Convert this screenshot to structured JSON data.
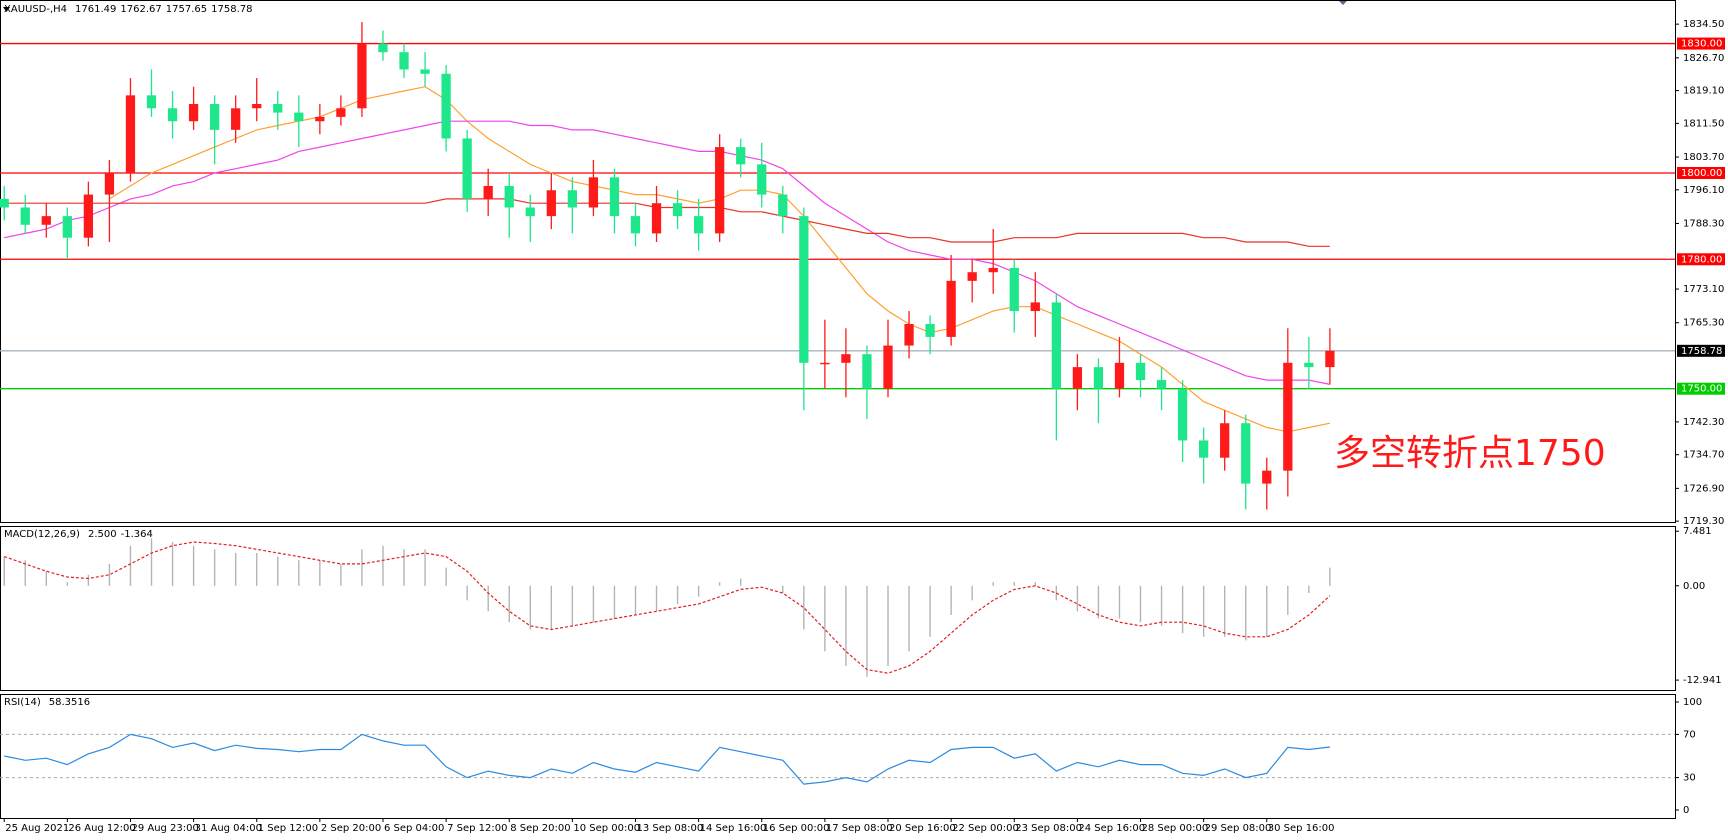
{
  "chart_data": [
    {
      "type": "candlestick",
      "title": "XAUUSD-,H4",
      "header_values": [
        1761.49,
        1762.67,
        1757.65,
        1758.78
      ],
      "annotation": "多空转折点1750",
      "annotation_color": "#ff1a1a",
      "up_color": "#ff1a1a",
      "down_color": "#1ee68a",
      "xlim": [
        -0.2,
        79.4
      ],
      "ylim": [
        1719.1,
        1840.1
      ],
      "xticks": [
        {
          "value": 0,
          "label": "25 Aug 2021"
        },
        {
          "value": 3,
          "label": "26 Aug 12:00"
        },
        {
          "value": 6,
          "label": "29 Aug 23:00"
        },
        {
          "value": 9,
          "label": "31 Aug 04:00"
        },
        {
          "value": 12,
          "label": "1 Sep 12:00"
        },
        {
          "value": 15,
          "label": "2 Sep 20:00"
        },
        {
          "value": 18,
          "label": "6 Sep 04:00"
        },
        {
          "value": 21,
          "label": "7 Sep 12:00"
        },
        {
          "value": 24,
          "label": "8 Sep 20:00"
        },
        {
          "value": 27,
          "label": "10 Sep 00:00"
        },
        {
          "value": 30,
          "label": "13 Sep 08:00"
        },
        {
          "value": 33,
          "label": "14 Sep 16:00"
        },
        {
          "value": 36,
          "label": "16 Sep 00:00"
        },
        {
          "value": 39,
          "label": "17 Sep 08:00"
        },
        {
          "value": 42,
          "label": "20 Sep 16:00"
        },
        {
          "value": 45,
          "label": "22 Sep 00:00"
        },
        {
          "value": 48,
          "label": "23 Sep 08:00"
        },
        {
          "value": 51,
          "label": "24 Sep 16:00"
        },
        {
          "value": 54,
          "label": "28 Sep 00:00"
        },
        {
          "value": 57,
          "label": "29 Sep 08:00"
        },
        {
          "value": 60,
          "label": "30 Sep 16:00"
        }
      ],
      "yticks": [
        {
          "value": 1834.5,
          "label": "1834.50"
        },
        {
          "value": 1826.7,
          "label": "1826.70"
        },
        {
          "value": 1819.1,
          "label": "1819.10"
        },
        {
          "value": 1811.5,
          "label": "1811.50"
        },
        {
          "value": 1803.7,
          "label": "1803.70"
        },
        {
          "value": 1796.1,
          "label": "1796.10"
        },
        {
          "value": 1788.3,
          "label": "1788.30"
        },
        {
          "value": 1773.1,
          "label": "1773.10"
        },
        {
          "value": 1765.3,
          "label": "1765.30"
        },
        {
          "value": 1742.3,
          "label": "1742.30"
        },
        {
          "value": 1734.7,
          "label": "1734.70"
        },
        {
          "value": 1726.9,
          "label": "1726.90"
        },
        {
          "value": 1719.3,
          "label": "1719.30"
        }
      ],
      "levels": [
        {
          "value": 1830,
          "label": "1830.00",
          "color": "#ff0000",
          "box": "#ff0000"
        },
        {
          "value": 1800,
          "label": "1800.00",
          "color": "#ff0000",
          "box": "#ff0000"
        },
        {
          "value": 1780,
          "label": "1780.00",
          "color": "#ff0000",
          "box": "#ff0000"
        },
        {
          "value": 1750,
          "label": "1750.00",
          "color": "#00cc00",
          "box": "#00cc00"
        },
        {
          "value": 1758.78,
          "label": "1758.78",
          "color": "#a8b4bf",
          "box": "#000000"
        }
      ],
      "open": [
        1794,
        1792,
        1788,
        1790,
        1785,
        1795,
        1800,
        1818,
        1815,
        1812,
        1816,
        1810,
        1815,
        1816,
        1814,
        1812,
        1813,
        1815,
        1830,
        1828,
        1824,
        1823,
        1808,
        1794,
        1797,
        1792,
        1790,
        1796,
        1792,
        1799,
        1790,
        1786,
        1793,
        1790,
        1786,
        1806,
        1802,
        1795,
        1790,
        1756,
        1756,
        1758,
        1750,
        1760,
        1765,
        1762,
        1775,
        1777,
        1778,
        1768,
        1770,
        1750,
        1755,
        1750,
        1756,
        1752,
        1750,
        1738,
        1734,
        1742,
        1728,
        1731,
        1756,
        1755
      ],
      "high": [
        1797,
        1795,
        1793,
        1792,
        1798,
        1803,
        1822,
        1824,
        1819,
        1820,
        1818,
        1818,
        1822,
        1819,
        1818,
        1816,
        1818,
        1835,
        1833,
        1830,
        1828,
        1825,
        1810,
        1801,
        1800,
        1795,
        1800,
        1799,
        1803,
        1801,
        1793,
        1797,
        1796,
        1794,
        1809,
        1808,
        1807,
        1797,
        1792,
        1766,
        1764,
        1760,
        1766,
        1768,
        1767,
        1781,
        1780,
        1787,
        1780,
        1777,
        1772,
        1758,
        1757,
        1762,
        1758,
        1755,
        1752,
        1741,
        1745,
        1744,
        1734,
        1764,
        1762,
        1764
      ],
      "low": [
        1789,
        1786,
        1785,
        1780,
        1783,
        1784,
        1798,
        1813,
        1808,
        1810,
        1802,
        1807,
        1812,
        1810,
        1806,
        1809,
        1811,
        1813,
        1826,
        1822,
        1820,
        1805,
        1791,
        1790,
        1785,
        1784,
        1787,
        1786,
        1790,
        1786,
        1783,
        1784,
        1787,
        1782,
        1784,
        1799,
        1792,
        1786,
        1745,
        1750,
        1748,
        1743,
        1748,
        1757,
        1758,
        1760,
        1770,
        1772,
        1763,
        1762,
        1738,
        1745,
        1742,
        1748,
        1748,
        1745,
        1733,
        1728,
        1731,
        1722,
        1722,
        1725,
        1750,
        1751
      ],
      "close": [
        1792,
        1788,
        1790,
        1785,
        1795,
        1800,
        1818,
        1815,
        1812,
        1816,
        1810,
        1815,
        1816,
        1814,
        1812,
        1813,
        1815,
        1830,
        1828,
        1824,
        1823,
        1808,
        1794,
        1797,
        1792,
        1790,
        1796,
        1792,
        1799,
        1790,
        1786,
        1793,
        1790,
        1786,
        1806,
        1802,
        1795,
        1790,
        1756,
        1756,
        1758,
        1750,
        1760,
        1765,
        1762,
        1775,
        1777,
        1778,
        1768,
        1770,
        1750,
        1755,
        1750,
        1756,
        1752,
        1750,
        1738,
        1734,
        1742,
        1728,
        1731,
        1756,
        1755,
        1758.78
      ],
      "lines": [
        {
          "color": "#ffa030",
          "values": [
            null,
            null,
            null,
            null,
            null,
            1794,
            1797,
            1800,
            1802,
            1804,
            1806,
            1808,
            1810,
            1811,
            1812,
            1813,
            1815,
            1817,
            1818,
            1819,
            1820,
            1817,
            1812,
            1808,
            1805,
            1802,
            1800,
            1798,
            1797,
            1796,
            1795,
            1795,
            1794,
            1793,
            1794,
            1796,
            1796,
            1795,
            1790,
            1784,
            1778,
            1772,
            1768,
            1765,
            1763,
            1764,
            1766,
            1768,
            1769,
            1769,
            1767,
            1765,
            1763,
            1761,
            1758,
            1755,
            1751,
            1747,
            1745,
            1743,
            1741,
            1740,
            1741,
            1742
          ]
        },
        {
          "color": "#ee44ee",
          "values": [
            1785,
            1786,
            1787,
            1789,
            1790,
            1792,
            1794,
            1795,
            1797,
            1798,
            1800,
            1801,
            1802,
            1803,
            1805,
            1806,
            1807,
            1808,
            1809,
            1810,
            1811,
            1812,
            1812,
            1812,
            1812,
            1811,
            1811,
            1810,
            1810,
            1809,
            1808,
            1807,
            1806,
            1805,
            1805,
            1804,
            1803,
            1801,
            1797,
            1793,
            1790,
            1787,
            1784,
            1782,
            1781,
            1780,
            1780,
            1779,
            1777,
            1775,
            1772,
            1769,
            1767,
            1765,
            1763,
            1761,
            1759,
            1757,
            1755,
            1753,
            1752,
            1752,
            1752,
            1751
          ]
        },
        {
          "color": "#e8332a",
          "values": [
            1793,
            1793,
            1793,
            1793,
            1793,
            1793,
            1793,
            1793,
            1793,
            1793,
            1793,
            1793,
            1793,
            1793,
            1793,
            1793,
            1793,
            1793,
            1793,
            1793,
            1793,
            1794,
            1794,
            1794,
            1794,
            1793,
            1793,
            1793,
            1793,
            1793,
            1793,
            1792,
            1792,
            1792,
            1792,
            1791,
            1791,
            1790,
            1789,
            1788,
            1787,
            1786,
            1786,
            1785,
            1785,
            1784,
            1784,
            1784,
            1785,
            1785,
            1785,
            1786,
            1786,
            1786,
            1786,
            1786,
            1786,
            1785,
            1785,
            1784,
            1784,
            1784,
            1783,
            1783
          ]
        }
      ]
    },
    {
      "type": "macd",
      "title": "MACD(12,26,9)",
      "readout": [
        {
          "value": 2.5,
          "label": "2.500"
        },
        -1.364
      ],
      "ylim": [
        -14.3,
        8.2
      ],
      "yticks": [
        7.481,
        {
          "value": 0,
          "label": "0.00"
        },
        -12.941
      ],
      "hist_color": "#b4b4b4",
      "signal_color": "#e02020",
      "values": [
        4,
        3.5,
        2,
        0.5,
        1.5,
        3,
        5.5,
        6.5,
        6,
        5.5,
        5,
        4.5,
        4.5,
        4,
        3.5,
        3.5,
        3,
        5,
        5.5,
        5,
        5,
        2.5,
        -2,
        -3.5,
        -5,
        -6,
        -6,
        -5.5,
        -5,
        -4.5,
        -4,
        -3.5,
        -2.5,
        -1.5,
        0.5,
        1,
        0,
        -1,
        -6,
        -9,
        -11,
        -12.5,
        -11,
        -9,
        -7,
        -4,
        -2,
        0.5,
        0.5,
        0.5,
        -2,
        -3.5,
        -4.5,
        -4.5,
        -5,
        -5.5,
        -6.5,
        -7,
        -7,
        -7.5,
        -7,
        -4,
        -1,
        2.5
      ],
      "signal": [
        4,
        3,
        2,
        1.2,
        1,
        1.5,
        3,
        4.5,
        5.5,
        6,
        5.8,
        5.5,
        5,
        4.5,
        4,
        3.5,
        3,
        3,
        3.5,
        4,
        4.5,
        4,
        2,
        -1,
        -3.5,
        -5.5,
        -6,
        -5.5,
        -5,
        -4.5,
        -4,
        -3.5,
        -3,
        -2.5,
        -1.5,
        -0.5,
        -0.2,
        -1,
        -3,
        -6,
        -9,
        -11.5,
        -12,
        -11,
        -9,
        -6.5,
        -4,
        -2,
        -0.5,
        0,
        -1,
        -2.5,
        -4,
        -5,
        -5.5,
        -5,
        -5,
        -5.5,
        -6.5,
        -7,
        -7,
        -6,
        -4,
        -1.364
      ]
    },
    {
      "type": "rsi",
      "title": "RSI(14)",
      "readout": [
        58.3516
      ],
      "ylim": [
        0,
        100
      ],
      "yticks": [
        100,
        70,
        30,
        0
      ],
      "color": "#2a8be0",
      "values": [
        50,
        46,
        48,
        42,
        52,
        58,
        70,
        66,
        58,
        62,
        55,
        60,
        57,
        56,
        54,
        56,
        56,
        70,
        64,
        60,
        60,
        40,
        30,
        36,
        32,
        30,
        38,
        34,
        44,
        38,
        35,
        44,
        40,
        36,
        58,
        54,
        50,
        46,
        24,
        26,
        30,
        26,
        38,
        46,
        44,
        56,
        58,
        58,
        48,
        52,
        36,
        44,
        40,
        46,
        42,
        42,
        34,
        32,
        38,
        30,
        34,
        58,
        56,
        58.3516
      ]
    }
  ]
}
